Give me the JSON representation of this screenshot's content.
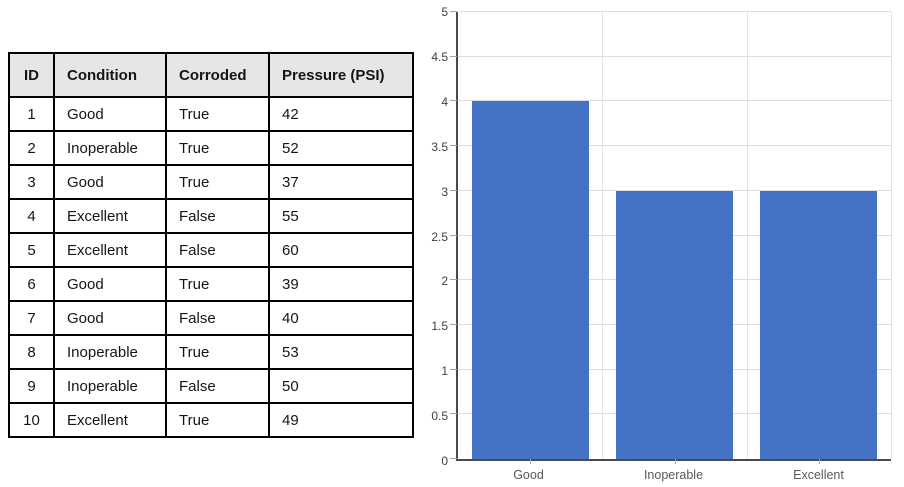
{
  "table": {
    "columns": [
      "ID",
      "Condition",
      "Corroded",
      "Pressure (PSI)"
    ],
    "rows": [
      [
        "1",
        "Good",
        "True",
        "42"
      ],
      [
        "2",
        "Inoperable",
        "True",
        "52"
      ],
      [
        "3",
        "Good",
        "True",
        "37"
      ],
      [
        "4",
        "Excellent",
        "False",
        "55"
      ],
      [
        "5",
        "Excellent",
        "False",
        "60"
      ],
      [
        "6",
        "Good",
        "True",
        "39"
      ],
      [
        "7",
        "Good",
        "False",
        "40"
      ],
      [
        "8",
        "Inoperable",
        "True",
        "53"
      ],
      [
        "9",
        "Inoperable",
        "False",
        "50"
      ],
      [
        "10",
        "Excellent",
        "True",
        "49"
      ]
    ],
    "header_bg": "#E7E6E6",
    "border_color": "#000000"
  },
  "chart_data": {
    "type": "bar",
    "categories": [
      "Good",
      "Inoperable",
      "Excellent"
    ],
    "values": [
      4,
      3,
      3
    ],
    "title": "",
    "xlabel": "",
    "ylabel": "",
    "ylim": [
      0,
      5
    ],
    "ytick_step": 0.5,
    "ytick_labels": [
      "0",
      "0.5",
      "1",
      "1.5",
      "2",
      "2.5",
      "3",
      "3.5",
      "4",
      "4.5",
      "5"
    ],
    "grid": true,
    "legend": "none",
    "bar_color": "#4472C4",
    "gridline_color": "#DEDEDE",
    "axis_color": "#4A4A4A",
    "tick_color": "#A6A6A6",
    "ylabel_color": "#404040",
    "xlabel_color": "#595959",
    "bar_width_fraction": 0.81
  }
}
